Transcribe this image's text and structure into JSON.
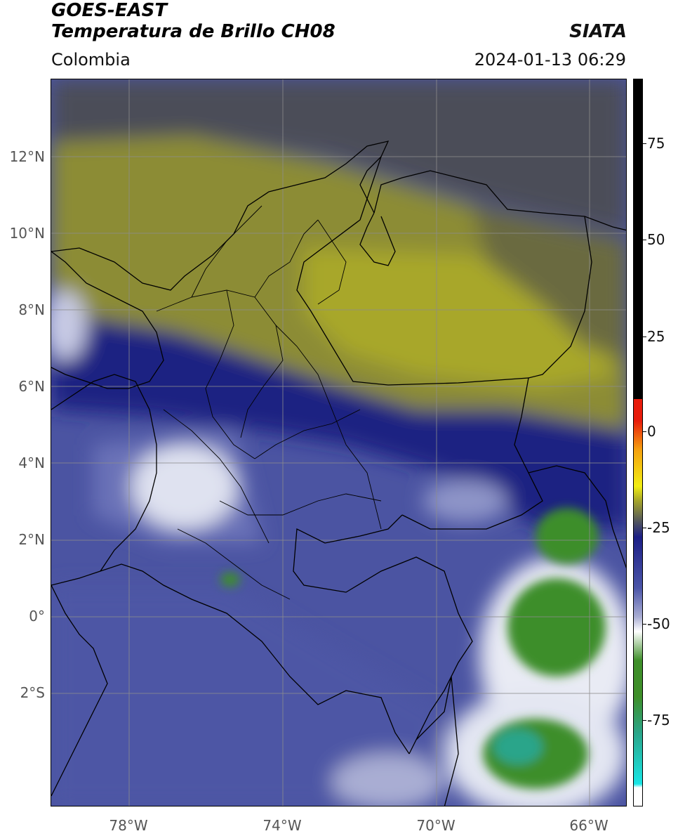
{
  "header": {
    "satellite": "GOES-EAST",
    "product": "Temperatura de Brillo CH08",
    "organization": "SIATA",
    "region": "Colombia",
    "datetime": "2024-01-13 06:29"
  },
  "axes": {
    "lat_ticks": [
      "12°N",
      "10°N",
      "8°N",
      "6°N",
      "4°N",
      "2°N",
      "0°",
      "2°S"
    ],
    "lon_ticks": [
      "78°W",
      "74°W",
      "70°W",
      "66°W"
    ]
  },
  "colorbar": {
    "ticks": [
      "75",
      "50",
      "25",
      "0",
      "-25",
      "-50",
      "-75"
    ],
    "colors": {
      "black": "#000000",
      "red": "#e81c0c",
      "orange": "#f5a10f",
      "yellow": "#f2ee12",
      "olive": "#a5a52a",
      "gray": "#4e5260",
      "navy": "#1c1f86",
      "blue": "#4b55a8",
      "lavender": "#a9add3",
      "white": "#ffffff",
      "green": "#3f8f2a",
      "teal": "#2aa58a",
      "cyan": "#18e6e6"
    }
  },
  "map_colors": {
    "gray_cloud": "#4c4e58",
    "olive_dark": "#6e6e3a",
    "olive": "#98982f",
    "olive_light": "#aaa829",
    "navy": "#1f2282",
    "blue": "#4b54a2",
    "blue_light": "#6d73b6",
    "white_cloud": "#eef0f6",
    "green": "#3e8e2c",
    "grid": "#8c8c8c",
    "border": "#000000"
  }
}
